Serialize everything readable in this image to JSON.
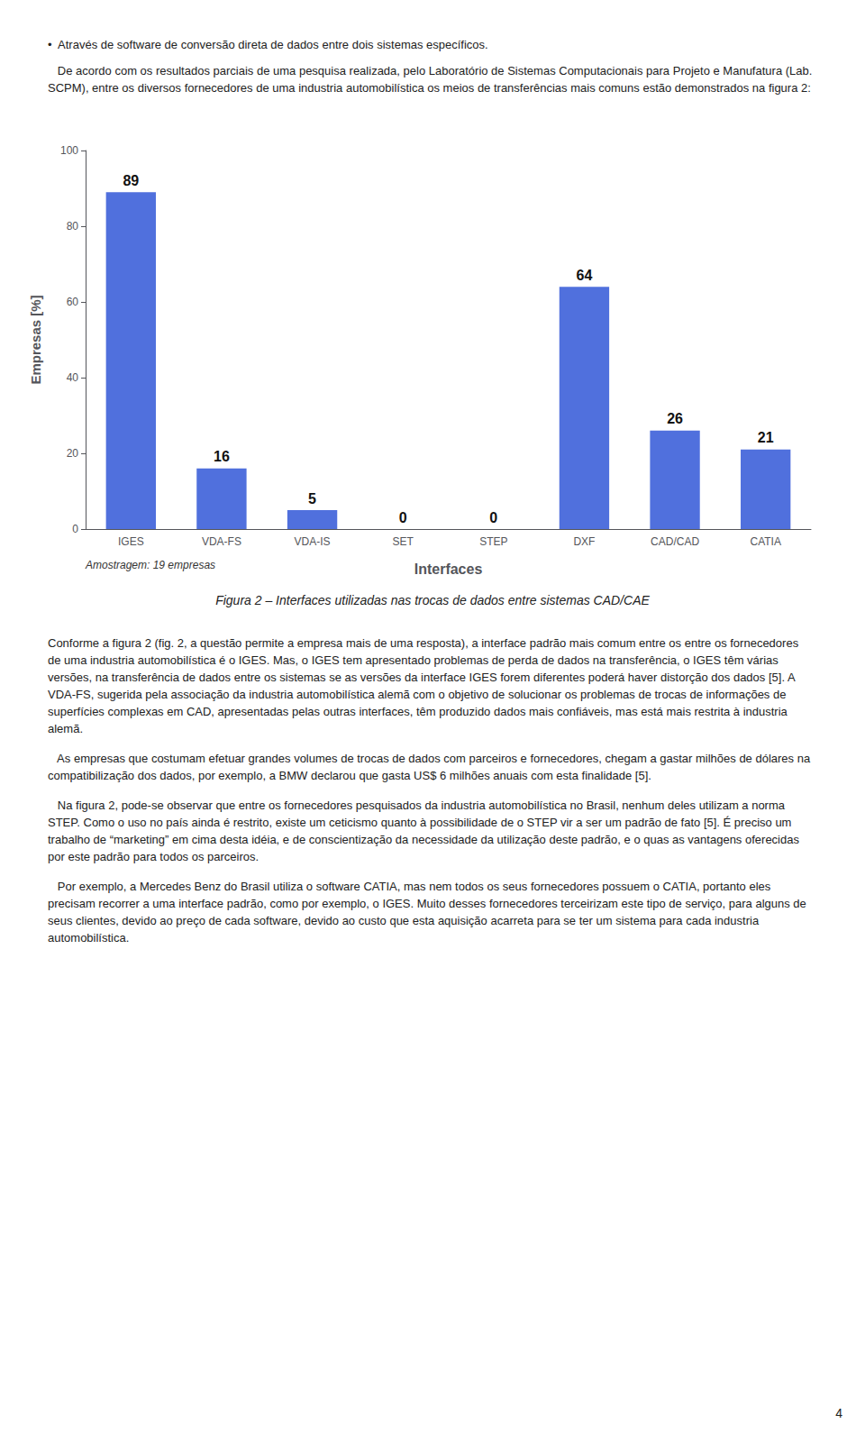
{
  "chart_data": {
    "type": "bar",
    "categories": [
      "IGES",
      "VDA-FS",
      "VDA-IS",
      "SET",
      "STEP",
      "DXF",
      "CAD/CAD",
      "CATIA"
    ],
    "values": [
      89,
      16,
      5,
      0,
      0,
      64,
      26,
      21
    ],
    "ylabel": "Empresas [%]",
    "xlabel": "Interfaces",
    "ylim": [
      0,
      100
    ],
    "yticks": [
      0,
      20,
      40,
      60,
      80,
      100
    ],
    "grid": false,
    "data_labels": true,
    "note": "Amostragem: 19 empresas",
    "caption": "Figura 2 – Interfaces utilizadas nas trocas de dados entre sistemas CAD/CAE",
    "text_above": [
      "•  Através de software de conversão direta de dados entre dois sistemas específicos.",
      "   De acordo com os resultados parciais de uma pesquisa realizada, pelo Laboratório de Sistemas Computacionais para Projeto e Manufatura (Lab. SCPM), entre os diversos fornecedores de uma industria automobilística os meios de transferências mais comuns estão demonstrados na figura 2:"
    ],
    "text_below": [
      "Conforme a figura 2 (fig. 2, a questão permite a empresa mais de uma resposta), a interface padrão mais comum entre os entre os fornecedores de uma industria automobilística é o IGES. Mas, o IGES tem apresentado problemas de perda de dados na transferência, o IGES têm várias versões, na transferência de dados entre os sistemas se as versões da interface IGES forem diferentes poderá haver distorção dos dados [5]. A VDA-FS, sugerida pela associação da industria automobilística alemã com o objetivo de solucionar os problemas de trocas de informações de superfícies complexas em CAD, apresentadas pelas outras interfaces, têm produzido dados mais confiáveis, mas está mais restrita à industria alemã.",
      "   As empresas que costumam efetuar grandes volumes de trocas de dados com parceiros e fornecedores, chegam a gastar milhões de dólares na compatibilização dos dados, por exemplo, a BMW declarou que gasta US$ 6 milhões anuais com esta finalidade [5].",
      "   Na figura 2, pode-se observar que entre os fornecedores pesquisados da industria automobilística no Brasil, nenhum deles utilizam a norma STEP. Como o uso no país ainda é restrito, existe um ceticismo quanto à possibilidade de o STEP vir a ser um padrão de fato [5]. É preciso um trabalho de “marketing” em cima desta idéia, e de conscientização da necessidade da utilização deste padrão, e o quas as vantagens oferecidas por este padrão para todos os parceiros.",
      "   Por exemplo, a Mercedes Benz do Brasil utiliza o software CATIA, mas nem todos os seus fornecedores possuem o CATIA, portanto eles precisam recorrer a uma interface padrão, como por exemplo, o IGES. Muito desses fornecedores terceirizam este tipo de serviço, para alguns de seus clientes, devido ao preço de cada software, devido ao custo que esta aquisição acarreta para se ter um sistema para cada industria automobilística."
    ],
    "page_number": "4"
  }
}
